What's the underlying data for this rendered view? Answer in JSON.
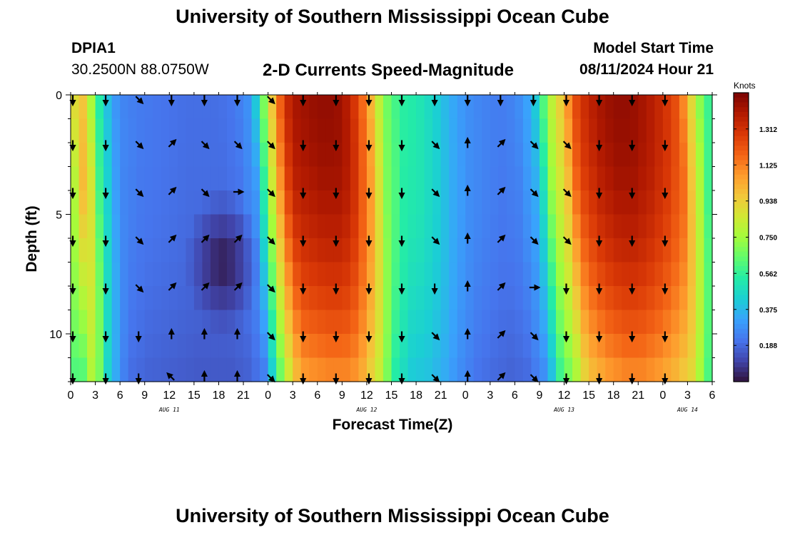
{
  "header": {
    "title": "University of Southern Mississippi Ocean Cube",
    "station": "DPIA1",
    "coords": "30.2500N  88.0750W",
    "subtitle": "2-D Currents Speed-Magnitude",
    "model_start_label": "Model Start Time",
    "model_start_value": "08/11/2024 Hour 21"
  },
  "footer": {
    "title": "University of Southern Mississippi Ocean Cube"
  },
  "chart_data": {
    "type": "heatmap",
    "title": "2-D Currents Speed-Magnitude",
    "xlabel": "Forecast Time(Z)",
    "ylabel": "Depth (ft)",
    "x_hours_since_start": [
      0,
      78
    ],
    "ylim": [
      0,
      12
    ],
    "x_ticks": [
      {
        "h": 0,
        "label": "0"
      },
      {
        "h": 3,
        "label": "3"
      },
      {
        "h": 6,
        "label": "6"
      },
      {
        "h": 9,
        "label": "9"
      },
      {
        "h": 12,
        "label": "12"
      },
      {
        "h": 15,
        "label": "15"
      },
      {
        "h": 18,
        "label": "18"
      },
      {
        "h": 21,
        "label": "21"
      },
      {
        "h": 24,
        "label": "0"
      },
      {
        "h": 27,
        "label": "3"
      },
      {
        "h": 30,
        "label": "6"
      },
      {
        "h": 33,
        "label": "9"
      },
      {
        "h": 36,
        "label": "12"
      },
      {
        "h": 39,
        "label": "15"
      },
      {
        "h": 42,
        "label": "18"
      },
      {
        "h": 45,
        "label": "21"
      },
      {
        "h": 48,
        "label": "0"
      },
      {
        "h": 51,
        "label": "3"
      },
      {
        "h": 54,
        "label": "6"
      },
      {
        "h": 57,
        "label": "9"
      },
      {
        "h": 60,
        "label": "12"
      },
      {
        "h": 63,
        "label": "15"
      },
      {
        "h": 66,
        "label": "18"
      },
      {
        "h": 69,
        "label": "21"
      },
      {
        "h": 72,
        "label": "0"
      },
      {
        "h": 75,
        "label": "3"
      },
      {
        "h": 78,
        "label": "6"
      }
    ],
    "date_labels": [
      {
        "h": 12,
        "label": "AUG 11"
      },
      {
        "h": 36,
        "label": "AUG 12"
      },
      {
        "h": 60,
        "label": "AUG 13"
      },
      {
        "h": 75,
        "label": "AUG 14"
      }
    ],
    "y_ticks": [
      {
        "v": 0,
        "label": "0"
      },
      {
        "v": 5,
        "label": "5"
      },
      {
        "v": 10,
        "label": "10"
      }
    ],
    "colorbar": {
      "title": "Knots",
      "range": [
        0,
        1.5
      ],
      "ticks": [
        0.188,
        0.375,
        0.562,
        0.75,
        0.938,
        1.125,
        1.312
      ],
      "tick_labels": [
        "0.188",
        "0.375",
        "0.562",
        "0.750",
        "0.938",
        "1.125",
        "1.312"
      ],
      "colors": [
        "#30123b",
        "#4145ab",
        "#4675ed",
        "#39a2fc",
        "#1bcfd4",
        "#24eca6",
        "#61fc6c",
        "#a4fc3b",
        "#d1e834",
        "#f3c63a",
        "#fe9b2d",
        "#f36315",
        "#d93806",
        "#b11901",
        "#7a0402"
      ]
    },
    "time_speed_knots": {
      "hours": [
        0,
        1,
        2,
        3,
        4,
        5,
        6,
        8,
        10,
        12,
        14,
        16,
        18,
        20,
        22,
        23,
        24,
        25,
        26,
        27,
        28,
        30,
        32,
        33,
        34,
        36,
        37,
        38,
        40,
        42,
        44,
        46,
        48,
        50,
        52,
        54,
        56,
        57,
        58,
        60,
        61,
        62,
        63,
        64,
        66,
        68,
        70,
        72,
        74,
        75,
        76,
        77,
        78
      ],
      "surface_speed": [
        0.8,
        1.02,
        0.9,
        0.6,
        0.45,
        0.32,
        0.26,
        0.23,
        0.22,
        0.21,
        0.2,
        0.2,
        0.2,
        0.22,
        0.3,
        0.55,
        0.85,
        1.1,
        1.3,
        1.4,
        1.42,
        1.45,
        1.45,
        1.42,
        1.35,
        1.1,
        0.9,
        0.7,
        0.55,
        0.52,
        0.45,
        0.35,
        0.28,
        0.25,
        0.23,
        0.25,
        0.35,
        0.5,
        0.75,
        1.0,
        1.2,
        1.3,
        1.35,
        1.4,
        1.45,
        1.45,
        1.4,
        1.32,
        1.2,
        1.0,
        0.8,
        0.6,
        0.55
      ],
      "depth_front_shift_hours": 1.5,
      "bottom_speed_factor": 0.75
    },
    "low_speed_patch": {
      "hours": [
        16,
        21
      ],
      "depth_ft": [
        5.5,
        8.5
      ],
      "min_speed": 0.02
    },
    "vectors": {
      "hours": [
        0,
        4,
        8,
        12,
        16,
        20,
        24,
        28,
        32,
        36,
        40,
        44,
        48,
        52,
        56,
        60,
        64,
        68,
        72
      ],
      "depths_ft": [
        0,
        2,
        4,
        6,
        8,
        10,
        12
      ],
      "direction_deg": [
        [
          180,
          180,
          135,
          180,
          180,
          180,
          135,
          180,
          180,
          180,
          180,
          180,
          180,
          180,
          180,
          180,
          180,
          180,
          180
        ],
        [
          180,
          180,
          135,
          45,
          135,
          135,
          135,
          180,
          180,
          180,
          180,
          135,
          0,
          45,
          135,
          135,
          180,
          180,
          180
        ],
        [
          180,
          180,
          135,
          45,
          135,
          90,
          135,
          180,
          180,
          180,
          180,
          135,
          0,
          45,
          135,
          135,
          180,
          180,
          180
        ],
        [
          180,
          180,
          135,
          45,
          45,
          45,
          135,
          180,
          180,
          180,
          180,
          135,
          0,
          45,
          135,
          135,
          180,
          180,
          180
        ],
        [
          180,
          180,
          135,
          45,
          45,
          45,
          135,
          180,
          180,
          180,
          180,
          180,
          0,
          45,
          90,
          180,
          180,
          180,
          180
        ],
        [
          180,
          180,
          180,
          0,
          0,
          0,
          135,
          180,
          180,
          180,
          180,
          135,
          0,
          45,
          135,
          180,
          180,
          180,
          180
        ],
        [
          180,
          180,
          180,
          315,
          0,
          0,
          135,
          180,
          180,
          180,
          180,
          135,
          0,
          45,
          135,
          180,
          180,
          180,
          180
        ]
      ]
    }
  }
}
